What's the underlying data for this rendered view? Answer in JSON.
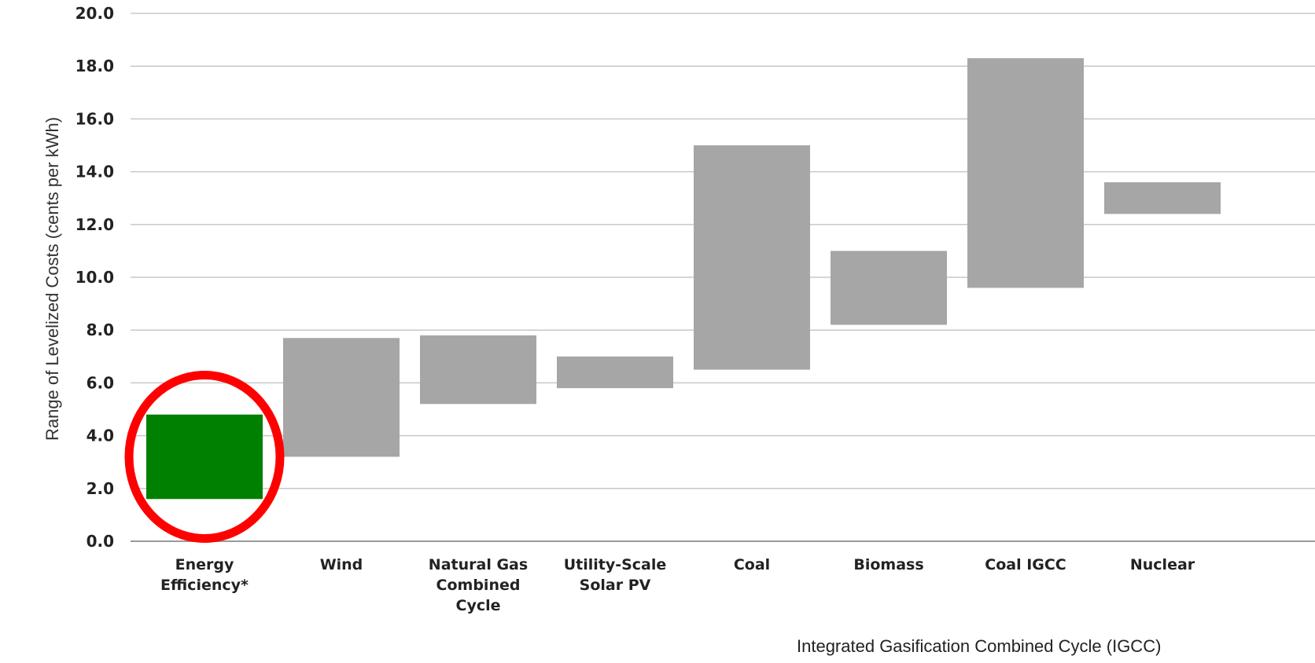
{
  "chart_data": {
    "type": "bar",
    "subtype": "floating-range",
    "categories": [
      [
        "Energy",
        "Efficiency*"
      ],
      [
        "Wind"
      ],
      [
        "Natural Gas",
        "Combined",
        "Cycle"
      ],
      [
        "Utility-Scale",
        "Solar PV"
      ],
      [
        "Coal"
      ],
      [
        "Biomass"
      ],
      [
        "Coal IGCC"
      ],
      [
        "Nuclear"
      ]
    ],
    "ranges": [
      [
        1.6,
        4.8
      ],
      [
        3.2,
        7.7
      ],
      [
        5.2,
        7.8
      ],
      [
        5.8,
        7.0
      ],
      [
        6.5,
        15.0
      ],
      [
        8.2,
        11.0
      ],
      [
        9.6,
        18.3
      ],
      [
        12.4,
        13.6
      ]
    ],
    "bar_colors": [
      "#008000",
      "#a6a6a6",
      "#a6a6a6",
      "#a6a6a6",
      "#a6a6a6",
      "#a6a6a6",
      "#a6a6a6",
      "#a6a6a6"
    ],
    "highlight": {
      "category_index": 0,
      "color": "#ff0000",
      "shape": "ellipse"
    },
    "ylabel": "Range of Levelized Costs (cents per kWh)",
    "xlabel": "",
    "ylim": [
      0,
      20
    ],
    "yticks": [
      "0.0",
      "2.0",
      "4.0",
      "6.0",
      "8.0",
      "10.0",
      "12.0",
      "14.0",
      "16.0",
      "18.0",
      "20.0"
    ],
    "grid": "horizontal",
    "gridline_color": "#c8c8c8"
  },
  "footnote": "Integrated Gasification Combined Cycle (IGCC)"
}
